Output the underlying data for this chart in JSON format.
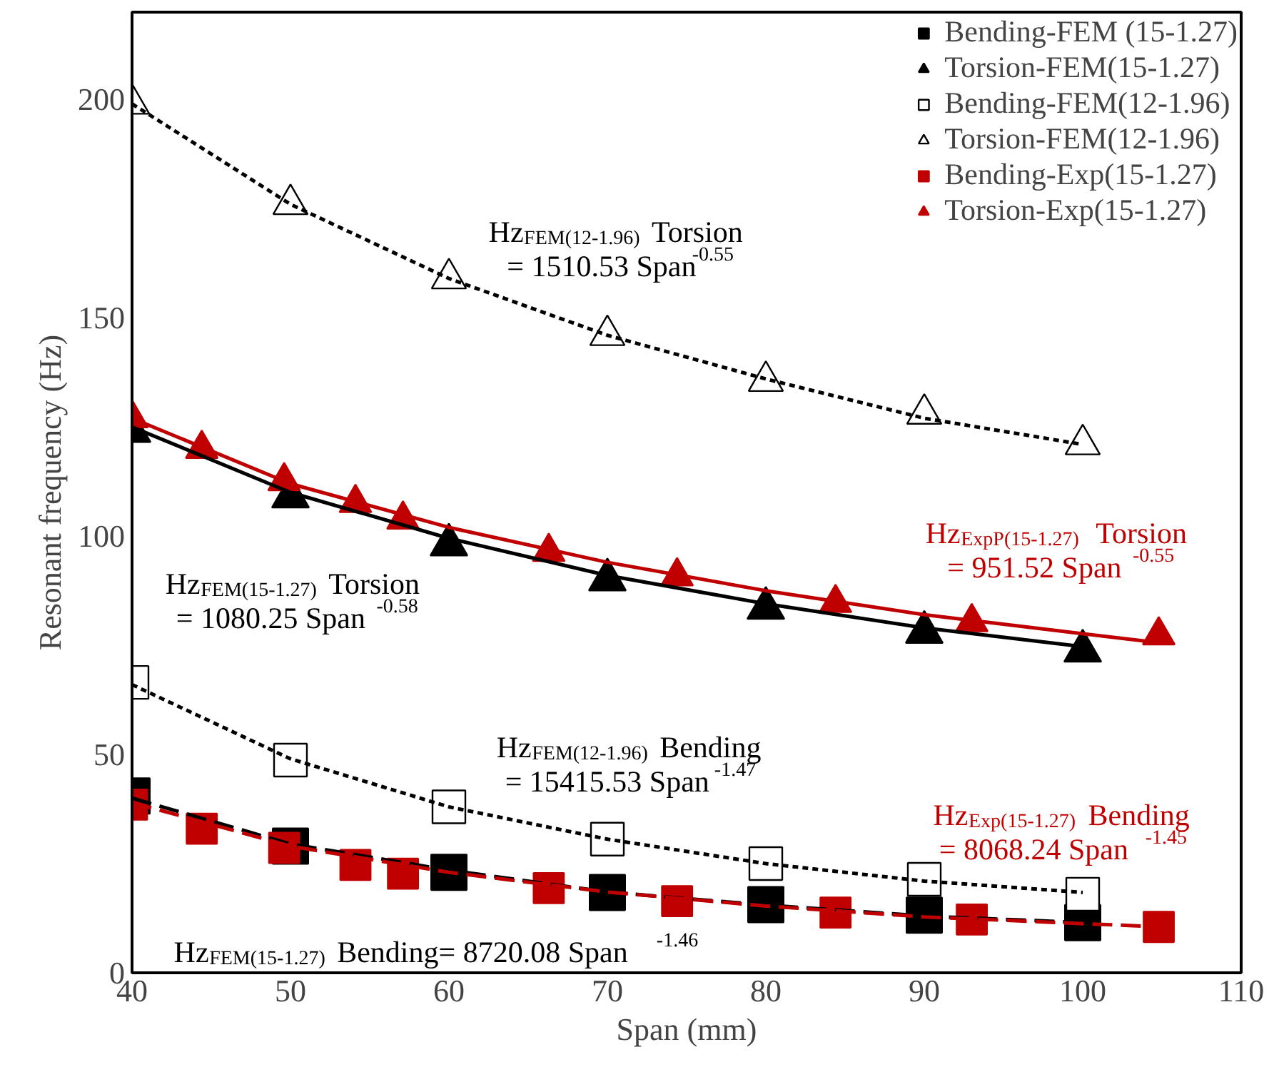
{
  "chart_data": {
    "type": "scatter",
    "xlabel": "Span (mm)",
    "ylabel": "Resonant frequency (Hz)",
    "xlim": [
      40,
      110
    ],
    "xticks": [
      40,
      50,
      60,
      70,
      80,
      90,
      100,
      110
    ],
    "ylim": [
      0,
      220
    ],
    "yticks": [
      0,
      50,
      100,
      150,
      200
    ],
    "grid": false,
    "legend": "top right",
    "series": [
      {
        "name": "Bending-FEM (15-1.27)",
        "color": "#000000",
        "marker": "square",
        "x": [
          40,
          50,
          60,
          70,
          80,
          90,
          100
        ],
        "values": [
          40.5,
          29,
          23,
          18.4,
          15.6,
          13.2,
          11.5
        ]
      },
      {
        "name": "Torsion-FEM(15-1.27)",
        "color": "#000000",
        "marker": "triangle",
        "x": [
          40,
          50,
          60,
          70,
          80,
          90,
          100
        ],
        "values": [
          124,
          109,
          98,
          90,
          83.5,
          78,
          73.7
        ]
      },
      {
        "name": "Bending-FEM(12-1.96)",
        "color": "#ffffff",
        "marker": "square",
        "x": [
          40,
          50,
          60,
          70,
          80,
          90,
          100
        ],
        "values": [
          66.5,
          48.7,
          38,
          30.6,
          25,
          21.4,
          18
        ]
      },
      {
        "name": "Torsion-FEM(12-1.96)",
        "color": "#ffffff",
        "marker": "triangle",
        "x": [
          40,
          50,
          60,
          70,
          80,
          90,
          100
        ],
        "values": [
          199,
          176,
          159,
          146,
          135.5,
          128,
          121
        ]
      },
      {
        "name": "Bending-Exp(15-1.27)",
        "color": "#c00000",
        "marker": "square",
        "x": [
          40,
          44.4,
          49.6,
          54.1,
          57.1,
          66.3,
          74.4,
          84.4,
          93,
          104.8
        ],
        "values": [
          38.5,
          33,
          28.6,
          24.7,
          22.7,
          19.4,
          16.4,
          13.8,
          12.2,
          10.5
        ]
      },
      {
        "name": "Torsion-Exp(15-1.27)",
        "color": "#c00000",
        "marker": "triangle",
        "x": [
          40,
          44.4,
          49.6,
          54.1,
          57.1,
          66.3,
          74.4,
          84.4,
          93,
          104.8
        ],
        "values": [
          127,
          120,
          112.6,
          107.6,
          103.8,
          96.4,
          90.8,
          84.7,
          80.3,
          77.3
        ]
      },
      {
        "type": "line",
        "color": "#000000",
        "marker": "none",
        "line_style": "solid",
        "x": [
          40,
          50,
          60,
          70,
          80,
          90,
          100
        ],
        "values": [
          125,
          110,
          99.5,
          91,
          84.5,
          79,
          74.7
        ]
      },
      {
        "type": "line",
        "color": "#c00000",
        "marker": "none",
        "line_style": "solid",
        "x": [
          40,
          50,
          60,
          70,
          80,
          90,
          105
        ],
        "values": [
          127,
          112,
          102,
          94,
          87.5,
          82,
          75.5
        ]
      },
      {
        "type": "line",
        "color": "#000000",
        "marker": "none",
        "line_style": "dotted",
        "x": [
          40,
          50,
          60,
          70,
          80,
          90,
          100
        ],
        "values": [
          199,
          176,
          159,
          146,
          136,
          127,
          121
        ]
      },
      {
        "type": "line",
        "color": "#000000",
        "marker": "none",
        "line_style": "dotted",
        "x": [
          40,
          50,
          60,
          70,
          80,
          90,
          100
        ],
        "values": [
          66,
          49,
          38,
          30.6,
          25,
          21,
          18.4
        ]
      },
      {
        "type": "line",
        "color": "#000000",
        "marker": "none",
        "line_style": "dashed",
        "x": [
          40,
          50,
          60,
          70,
          80,
          90,
          100
        ],
        "values": [
          40,
          29.5,
          23.5,
          18.5,
          15.5,
          13,
          11.5
        ]
      },
      {
        "type": "line",
        "color": "#c00000",
        "marker": "none",
        "line_style": "dashed",
        "x": [
          40,
          50,
          60,
          70,
          80,
          90,
          105
        ],
        "values": [
          39,
          29,
          23,
          18.5,
          15.3,
          12.8,
          10.5
        ]
      }
    ],
    "annotations": [
      "Hz$_{FEM(12-1.96)}$ Torsion\n= 1510.53 Span$^{-0.55}$",
      "Hz$_{FEM(15-1.27)}$ Torsion\n= 1080.25 Span $^{-0.58}$",
      "Hz$_{FEM(12-1.96)}$ Bending\n= 15415.53 Span $^{-1.47}$",
      "Hz$_{ExpP(15-1.27)}$ Torsion\n= 951.52 Span $^{-0.55}$",
      "Hz$_{Exp(15-1.27)}$ Bending\n= 8068.24 Span $^{-1.45}$",
      "Hz$_{FEM(15-1.27)}$ Bending= 8720.08 Span $^{-1.46}$"
    ]
  }
}
